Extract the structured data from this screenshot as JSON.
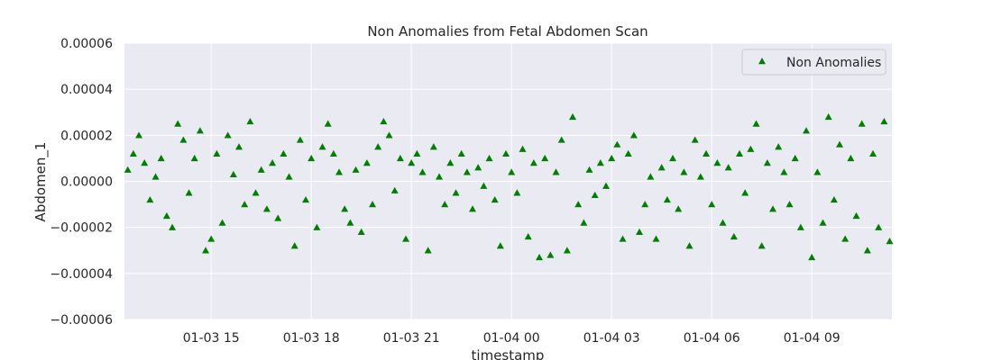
{
  "chart_data": {
    "type": "scatter",
    "title": "Non Anomalies from Fetal Abdomen Scan",
    "xlabel": "timestamp",
    "ylabel": "Abdomen_1",
    "xlim": [
      "2024-01-03 12:24",
      "2024-01-04 11:24"
    ],
    "ylim": [
      -6e-05,
      6e-05
    ],
    "x_ticks": [
      {
        "value": "2024-01-03 15:00",
        "label": "01-03 15"
      },
      {
        "value": "2024-01-03 18:00",
        "label": "01-03 18"
      },
      {
        "value": "2024-01-03 21:00",
        "label": "01-03 21"
      },
      {
        "value": "2024-01-04 00:00",
        "label": "01-04 00"
      },
      {
        "value": "2024-01-04 03:00",
        "label": "01-04 03"
      },
      {
        "value": "2024-01-04 06:00",
        "label": "01-04 06"
      },
      {
        "value": "2024-01-04 09:00",
        "label": "01-04 09"
      }
    ],
    "y_ticks": [
      {
        "value": 6e-05,
        "label": "0.00006"
      },
      {
        "value": 4e-05,
        "label": "0.00004"
      },
      {
        "value": 2e-05,
        "label": "0.00002"
      },
      {
        "value": 0,
        "label": "0.00000"
      },
      {
        "value": -2e-05,
        "label": "−0.00002"
      },
      {
        "value": -4e-05,
        "label": "−0.00004"
      },
      {
        "value": -6e-05,
        "label": "−0.00006"
      }
    ],
    "grid": true,
    "legend_position": "top-right",
    "marker": "triangle-up",
    "background_color": "#eaeaf2",
    "grid_color": "#ffffff",
    "series": [
      {
        "name": "Non Anomalies",
        "color": "#008000",
        "points": [
          {
            "x": "2024-01-03 12:30",
            "y": 5e-06
          },
          {
            "x": "2024-01-03 12:40",
            "y": 1.2e-05
          },
          {
            "x": "2024-01-03 12:50",
            "y": 2e-05
          },
          {
            "x": "2024-01-03 13:00",
            "y": 8e-06
          },
          {
            "x": "2024-01-03 13:10",
            "y": -8e-06
          },
          {
            "x": "2024-01-03 13:20",
            "y": 2e-06
          },
          {
            "x": "2024-01-03 13:30",
            "y": 1e-05
          },
          {
            "x": "2024-01-03 13:40",
            "y": -1.5e-05
          },
          {
            "x": "2024-01-03 13:50",
            "y": -2e-05
          },
          {
            "x": "2024-01-03 14:00",
            "y": 2.5e-05
          },
          {
            "x": "2024-01-03 14:10",
            "y": 1.8e-05
          },
          {
            "x": "2024-01-03 14:20",
            "y": -5e-06
          },
          {
            "x": "2024-01-03 14:30",
            "y": 1e-05
          },
          {
            "x": "2024-01-03 14:40",
            "y": 2.2e-05
          },
          {
            "x": "2024-01-03 14:50",
            "y": -3e-05
          },
          {
            "x": "2024-01-03 15:00",
            "y": -2.5e-05
          },
          {
            "x": "2024-01-03 15:10",
            "y": 1.2e-05
          },
          {
            "x": "2024-01-03 15:20",
            "y": -1.8e-05
          },
          {
            "x": "2024-01-03 15:30",
            "y": 2e-05
          },
          {
            "x": "2024-01-03 15:40",
            "y": 3e-06
          },
          {
            "x": "2024-01-03 15:50",
            "y": 1.5e-05
          },
          {
            "x": "2024-01-03 16:00",
            "y": -1e-05
          },
          {
            "x": "2024-01-03 16:10",
            "y": 2.6e-05
          },
          {
            "x": "2024-01-03 16:20",
            "y": -5e-06
          },
          {
            "x": "2024-01-03 16:30",
            "y": 5e-06
          },
          {
            "x": "2024-01-03 16:40",
            "y": -1.2e-05
          },
          {
            "x": "2024-01-03 16:50",
            "y": 8e-06
          },
          {
            "x": "2024-01-03 17:00",
            "y": -1.6e-05
          },
          {
            "x": "2024-01-03 17:10",
            "y": 1.2e-05
          },
          {
            "x": "2024-01-03 17:20",
            "y": 2e-06
          },
          {
            "x": "2024-01-03 17:30",
            "y": -2.8e-05
          },
          {
            "x": "2024-01-03 17:40",
            "y": 1.8e-05
          },
          {
            "x": "2024-01-03 17:50",
            "y": -8e-06
          },
          {
            "x": "2024-01-03 18:00",
            "y": 1e-05
          },
          {
            "x": "2024-01-03 18:10",
            "y": -2e-05
          },
          {
            "x": "2024-01-03 18:20",
            "y": 1.5e-05
          },
          {
            "x": "2024-01-03 18:30",
            "y": 2.5e-05
          },
          {
            "x": "2024-01-03 18:40",
            "y": 1.2e-05
          },
          {
            "x": "2024-01-03 18:50",
            "y": 4e-06
          },
          {
            "x": "2024-01-03 19:00",
            "y": -1.2e-05
          },
          {
            "x": "2024-01-03 19:10",
            "y": -1.8e-05
          },
          {
            "x": "2024-01-03 19:20",
            "y": 5e-06
          },
          {
            "x": "2024-01-03 19:30",
            "y": -2.2e-05
          },
          {
            "x": "2024-01-03 19:40",
            "y": 8e-06
          },
          {
            "x": "2024-01-03 19:50",
            "y": -1e-05
          },
          {
            "x": "2024-01-03 20:00",
            "y": 1.5e-05
          },
          {
            "x": "2024-01-03 20:10",
            "y": 2.6e-05
          },
          {
            "x": "2024-01-03 20:20",
            "y": 2e-05
          },
          {
            "x": "2024-01-03 20:30",
            "y": -4e-06
          },
          {
            "x": "2024-01-03 20:40",
            "y": 1e-05
          },
          {
            "x": "2024-01-03 20:50",
            "y": -2.5e-05
          },
          {
            "x": "2024-01-03 21:00",
            "y": 8e-06
          },
          {
            "x": "2024-01-03 21:10",
            "y": 1.2e-05
          },
          {
            "x": "2024-01-03 21:20",
            "y": 4e-06
          },
          {
            "x": "2024-01-03 21:30",
            "y": -3e-05
          },
          {
            "x": "2024-01-03 21:40",
            "y": 1.5e-05
          },
          {
            "x": "2024-01-03 21:50",
            "y": 2e-06
          },
          {
            "x": "2024-01-03 22:00",
            "y": -1e-05
          },
          {
            "x": "2024-01-03 22:10",
            "y": 8e-06
          },
          {
            "x": "2024-01-03 22:20",
            "y": -5e-06
          },
          {
            "x": "2024-01-03 22:30",
            "y": 1.2e-05
          },
          {
            "x": "2024-01-03 22:40",
            "y": 4e-06
          },
          {
            "x": "2024-01-03 22:50",
            "y": -1.2e-05
          },
          {
            "x": "2024-01-03 23:00",
            "y": 6e-06
          },
          {
            "x": "2024-01-03 23:10",
            "y": -2e-06
          },
          {
            "x": "2024-01-03 23:20",
            "y": 1e-05
          },
          {
            "x": "2024-01-03 23:30",
            "y": -8e-06
          },
          {
            "x": "2024-01-03 23:40",
            "y": -2.8e-05
          },
          {
            "x": "2024-01-03 23:50",
            "y": 1.2e-05
          },
          {
            "x": "2024-01-04 00:00",
            "y": 4e-06
          },
          {
            "x": "2024-01-04 00:10",
            "y": -5e-06
          },
          {
            "x": "2024-01-04 00:20",
            "y": 1.4e-05
          },
          {
            "x": "2024-01-04 00:30",
            "y": -2.4e-05
          },
          {
            "x": "2024-01-04 00:40",
            "y": 8e-06
          },
          {
            "x": "2024-01-04 00:50",
            "y": -3.3e-05
          },
          {
            "x": "2024-01-04 01:00",
            "y": 1e-05
          },
          {
            "x": "2024-01-04 01:10",
            "y": -3.2e-05
          },
          {
            "x": "2024-01-04 01:20",
            "y": 4e-06
          },
          {
            "x": "2024-01-04 01:30",
            "y": 1.8e-05
          },
          {
            "x": "2024-01-04 01:40",
            "y": -3e-05
          },
          {
            "x": "2024-01-04 01:50",
            "y": 2.8e-05
          },
          {
            "x": "2024-01-04 02:00",
            "y": -1e-05
          },
          {
            "x": "2024-01-04 02:10",
            "y": -1.8e-05
          },
          {
            "x": "2024-01-04 02:20",
            "y": 5e-06
          },
          {
            "x": "2024-01-04 02:30",
            "y": -6e-06
          },
          {
            "x": "2024-01-04 02:40",
            "y": 8e-06
          },
          {
            "x": "2024-01-04 02:50",
            "y": -2e-06
          },
          {
            "x": "2024-01-04 03:00",
            "y": 1e-05
          },
          {
            "x": "2024-01-04 03:10",
            "y": 1.6e-05
          },
          {
            "x": "2024-01-04 03:20",
            "y": -2.5e-05
          },
          {
            "x": "2024-01-04 03:30",
            "y": 1.2e-05
          },
          {
            "x": "2024-01-04 03:40",
            "y": 2e-05
          },
          {
            "x": "2024-01-04 03:50",
            "y": -2.2e-05
          },
          {
            "x": "2024-01-04 04:00",
            "y": -1e-05
          },
          {
            "x": "2024-01-04 04:10",
            "y": 2e-06
          },
          {
            "x": "2024-01-04 04:20",
            "y": -2.5e-05
          },
          {
            "x": "2024-01-04 04:30",
            "y": 6e-06
          },
          {
            "x": "2024-01-04 04:40",
            "y": -8e-06
          },
          {
            "x": "2024-01-04 04:50",
            "y": 1e-05
          },
          {
            "x": "2024-01-04 05:00",
            "y": -1.2e-05
          },
          {
            "x": "2024-01-04 05:10",
            "y": 4e-06
          },
          {
            "x": "2024-01-04 05:20",
            "y": -2.8e-05
          },
          {
            "x": "2024-01-04 05:30",
            "y": 1.8e-05
          },
          {
            "x": "2024-01-04 05:40",
            "y": 2e-06
          },
          {
            "x": "2024-01-04 05:50",
            "y": 1.2e-05
          },
          {
            "x": "2024-01-04 06:00",
            "y": -1e-05
          },
          {
            "x": "2024-01-04 06:10",
            "y": 8e-06
          },
          {
            "x": "2024-01-04 06:20",
            "y": -1.8e-05
          },
          {
            "x": "2024-01-04 06:30",
            "y": 6e-06
          },
          {
            "x": "2024-01-04 06:40",
            "y": -2.4e-05
          },
          {
            "x": "2024-01-04 06:50",
            "y": 1.2e-05
          },
          {
            "x": "2024-01-04 07:00",
            "y": -5e-06
          },
          {
            "x": "2024-01-04 07:10",
            "y": 1.4e-05
          },
          {
            "x": "2024-01-04 07:20",
            "y": 2.5e-05
          },
          {
            "x": "2024-01-04 07:30",
            "y": -2.8e-05
          },
          {
            "x": "2024-01-04 07:40",
            "y": 8e-06
          },
          {
            "x": "2024-01-04 07:50",
            "y": -1.2e-05
          },
          {
            "x": "2024-01-04 08:00",
            "y": 1.5e-05
          },
          {
            "x": "2024-01-04 08:10",
            "y": 4e-06
          },
          {
            "x": "2024-01-04 08:20",
            "y": -1e-05
          },
          {
            "x": "2024-01-04 08:30",
            "y": 1e-05
          },
          {
            "x": "2024-01-04 08:40",
            "y": -2e-05
          },
          {
            "x": "2024-01-04 08:50",
            "y": 2.2e-05
          },
          {
            "x": "2024-01-04 09:00",
            "y": -3.3e-05
          },
          {
            "x": "2024-01-04 09:10",
            "y": 4e-06
          },
          {
            "x": "2024-01-04 09:20",
            "y": -1.8e-05
          },
          {
            "x": "2024-01-04 09:30",
            "y": 2.8e-05
          },
          {
            "x": "2024-01-04 09:40",
            "y": -8e-06
          },
          {
            "x": "2024-01-04 09:50",
            "y": 1.6e-05
          },
          {
            "x": "2024-01-04 10:00",
            "y": -2.5e-05
          },
          {
            "x": "2024-01-04 10:10",
            "y": 1e-05
          },
          {
            "x": "2024-01-04 10:20",
            "y": -1.5e-05
          },
          {
            "x": "2024-01-04 10:30",
            "y": 2.5e-05
          },
          {
            "x": "2024-01-04 10:40",
            "y": -3e-05
          },
          {
            "x": "2024-01-04 10:50",
            "y": 1.2e-05
          },
          {
            "x": "2024-01-04 11:00",
            "y": -2e-05
          },
          {
            "x": "2024-01-04 11:10",
            "y": 2.6e-05
          },
          {
            "x": "2024-01-04 11:20",
            "y": -2.6e-05
          }
        ]
      }
    ]
  }
}
